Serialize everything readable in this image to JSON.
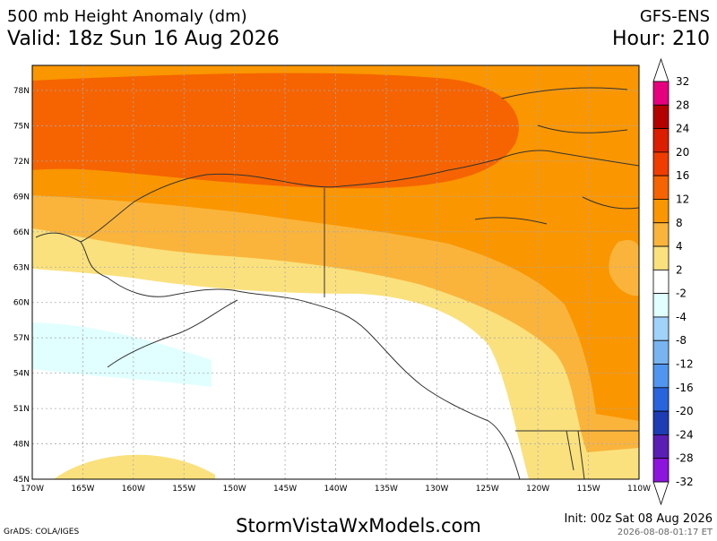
{
  "header": {
    "title": "500 mb Height Anomaly (dm)",
    "model": "GFS-ENS",
    "valid": "Valid: 18z Sun 16 Aug 2026",
    "hour": "Hour: 210"
  },
  "map": {
    "lat_labels": [
      "78N",
      "75N",
      "72N",
      "69N",
      "66N",
      "63N",
      "60N",
      "57N",
      "54N",
      "51N",
      "48N",
      "45N"
    ],
    "lon_labels": [
      "170W",
      "165W",
      "160W",
      "155W",
      "150W",
      "145W",
      "140W",
      "135W",
      "130W",
      "125W",
      "120W",
      "115W",
      "110W"
    ]
  },
  "colorbar": {
    "labels": [
      32,
      28,
      24,
      20,
      16,
      12,
      8,
      4,
      2,
      -2,
      -4,
      -8,
      -12,
      -16,
      -20,
      -24,
      -28,
      -32
    ],
    "colors": [
      "#e6007e",
      "#b40000",
      "#dc1e00",
      "#f03c00",
      "#f56400",
      "#fa9600",
      "#fab43c",
      "#fae17d",
      "#ffffff",
      "#e1ffff",
      "#a0d2fa",
      "#78b4f0",
      "#5096f0",
      "#2864dc",
      "#1e3cb4",
      "#5a1eb4",
      "#8c14dc"
    ]
  },
  "footer": {
    "credit": "GrADS: COLA/IGES",
    "site": "StormVistaWxModels.com",
    "init": "Init: 00z Sat 08 Aug 2026",
    "timestamp": "2026-08-08-01:17 ET"
  }
}
